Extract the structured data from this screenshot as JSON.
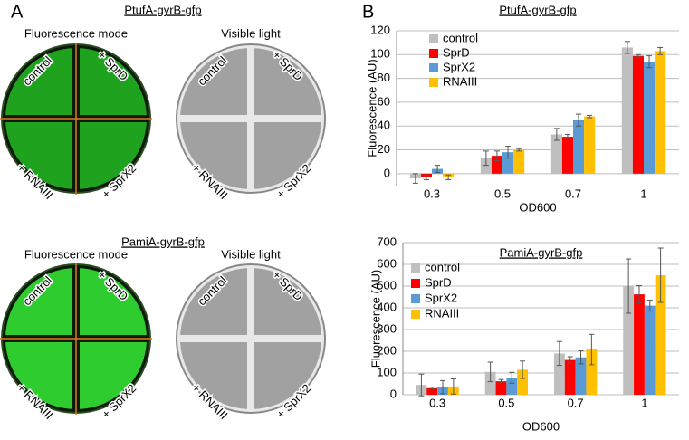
{
  "panel_a": {
    "label": "A",
    "sections": [
      {
        "title": "PtufA-gyrB-gfp",
        "plates": [
          {
            "mode": "Fluorescence mode",
            "labels": [
              "control",
              "+ SprD",
              "+ RNAIII",
              "+ SprX2"
            ]
          },
          {
            "mode": "Visible light",
            "labels": [
              "control",
              "+ SprD",
              "+ RNAIII",
              "+ SprX2"
            ]
          }
        ]
      },
      {
        "title": "PamiA-gyrB-gfp",
        "plates": [
          {
            "mode": "Fluorescence mode",
            "labels": [
              "control",
              "+ SprD",
              "+ RNAIII",
              "+ SprX2"
            ]
          },
          {
            "mode": "Visible light",
            "labels": [
              "control",
              "+ SprD",
              "+ RNAIII",
              "+ SprX2"
            ]
          }
        ]
      }
    ]
  },
  "panel_b": {
    "label": "B"
  },
  "chart_data": [
    {
      "type": "bar",
      "title": "PtufA-gyrB-gfp",
      "x_label": "OD600",
      "y_label": "Fluorescence (AU)",
      "categories": [
        "0.3",
        "0.5",
        "0.7",
        "1"
      ],
      "ylim": [
        -10,
        120
      ],
      "yticks": [
        0,
        20,
        40,
        60,
        80,
        100,
        120
      ],
      "grid": true,
      "legend": "upper left",
      "series": [
        {
          "name": "control",
          "color": "#bfbfbf",
          "values": [
            -4,
            13,
            33,
            106
          ],
          "errors": [
            4,
            6,
            5,
            5
          ]
        },
        {
          "name": "SprD",
          "color": "#ff0000",
          "values": [
            -3,
            15,
            31,
            99
          ],
          "errors": [
            2,
            4,
            2,
            1
          ]
        },
        {
          "name": "SprX2",
          "color": "#5b9bd5",
          "values": [
            4,
            18,
            45,
            94
          ],
          "errors": [
            3,
            5,
            5,
            5
          ]
        },
        {
          "name": "RNAIII",
          "color": "#ffc000",
          "values": [
            -3,
            20,
            48,
            103
          ],
          "errors": [
            2,
            1,
            1,
            3
          ]
        }
      ]
    },
    {
      "type": "bar",
      "title": "PamiA-gyrB-gfp",
      "x_label": "OD600",
      "y_label": "Fluorescence (AU)",
      "categories": [
        "0.3",
        "0.5",
        "0.7",
        "1"
      ],
      "ylim": [
        0,
        700
      ],
      "yticks": [
        0,
        100,
        200,
        300,
        400,
        500,
        600,
        700
      ],
      "grid": true,
      "legend": "upper left",
      "series": [
        {
          "name": "control",
          "color": "#bfbfbf",
          "values": [
            45,
            105,
            190,
            500
          ],
          "errors": [
            50,
            45,
            55,
            125
          ]
        },
        {
          "name": "SprD",
          "color": "#ff0000",
          "values": [
            30,
            62,
            160,
            462
          ],
          "errors": [
            5,
            8,
            15,
            40
          ]
        },
        {
          "name": "SprX2",
          "color": "#5b9bd5",
          "values": [
            35,
            78,
            172,
            410
          ],
          "errors": [
            30,
            25,
            30,
            25
          ]
        },
        {
          "name": "RNAIII",
          "color": "#ffc000",
          "values": [
            38,
            115,
            208,
            550
          ],
          "errors": [
            35,
            40,
            70,
            125
          ]
        }
      ]
    }
  ]
}
